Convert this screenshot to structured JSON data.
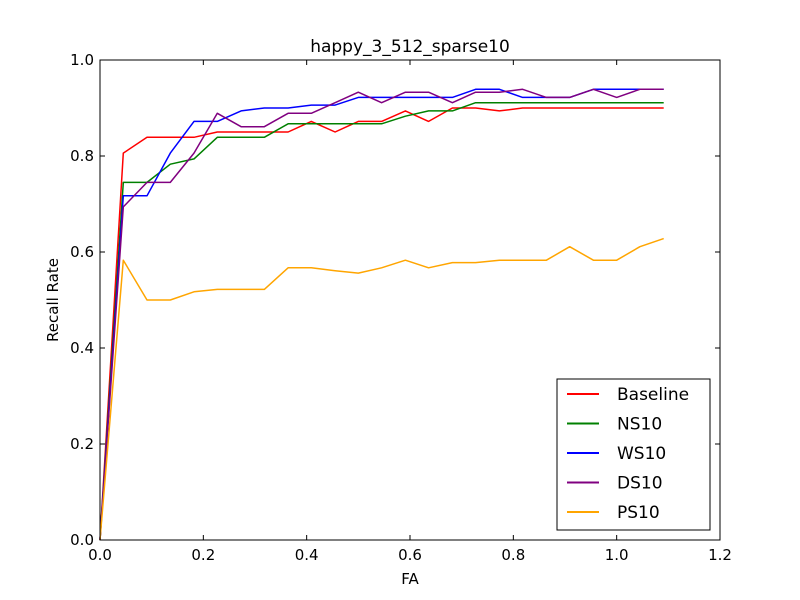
{
  "chart_data": {
    "type": "line",
    "title": "happy_3_512_sparse10",
    "xlabel": "FA",
    "ylabel": "Recall Rate",
    "xlim": [
      0.0,
      1.2
    ],
    "ylim": [
      0.0,
      1.0
    ],
    "xticks": [
      "0.0",
      "0.2",
      "0.4",
      "0.6",
      "0.8",
      "1.0",
      "1.2"
    ],
    "yticks": [
      "0.0",
      "0.2",
      "0.4",
      "0.6",
      "0.8",
      "1.0"
    ],
    "legend_position": "lower-right",
    "grid": false,
    "x": [
      0.0,
      0.045,
      0.091,
      0.136,
      0.182,
      0.227,
      0.273,
      0.318,
      0.364,
      0.409,
      0.455,
      0.5,
      0.545,
      0.591,
      0.636,
      0.682,
      0.727,
      0.773,
      0.818,
      0.864,
      0.909,
      0.955,
      1.0,
      1.045,
      1.091
    ],
    "series": [
      {
        "name": "Baseline",
        "color": "#ff0000",
        "values": [
          0.0,
          0.806,
          0.839,
          0.839,
          0.839,
          0.85,
          0.85,
          0.85,
          0.85,
          0.872,
          0.85,
          0.872,
          0.872,
          0.894,
          0.872,
          0.9,
          0.9,
          0.894,
          0.9,
          0.9,
          0.9,
          0.9,
          0.9,
          0.9,
          0.9
        ]
      },
      {
        "name": "NS10",
        "color": "#008000",
        "values": [
          0.0,
          0.745,
          0.745,
          0.783,
          0.794,
          0.839,
          0.839,
          0.839,
          0.867,
          0.867,
          0.867,
          0.867,
          0.867,
          0.883,
          0.894,
          0.894,
          0.911,
          0.911,
          0.911,
          0.911,
          0.911,
          0.911,
          0.911,
          0.911,
          0.911
        ]
      },
      {
        "name": "WS10",
        "color": "#0000ff",
        "values": [
          0.0,
          0.717,
          0.717,
          0.806,
          0.872,
          0.872,
          0.894,
          0.9,
          0.9,
          0.906,
          0.906,
          0.922,
          0.922,
          0.922,
          0.922,
          0.922,
          0.939,
          0.939,
          0.922,
          0.922,
          0.922,
          0.939,
          0.939,
          0.939,
          0.939
        ]
      },
      {
        "name": "DS10",
        "color": "#800080",
        "values": [
          0.0,
          0.694,
          0.745,
          0.745,
          0.806,
          0.889,
          0.861,
          0.861,
          0.889,
          0.889,
          0.911,
          0.933,
          0.911,
          0.933,
          0.933,
          0.911,
          0.933,
          0.933,
          0.939,
          0.922,
          0.922,
          0.939,
          0.922,
          0.939,
          0.939
        ]
      },
      {
        "name": "PS10",
        "color": "#ffa500",
        "values": [
          0.0,
          0.583,
          0.5,
          0.5,
          0.517,
          0.522,
          0.522,
          0.522,
          0.567,
          0.567,
          0.561,
          0.556,
          0.567,
          0.583,
          0.567,
          0.578,
          0.578,
          0.583,
          0.583,
          0.583,
          0.611,
          0.583,
          0.583,
          0.611,
          0.628
        ]
      }
    ]
  }
}
